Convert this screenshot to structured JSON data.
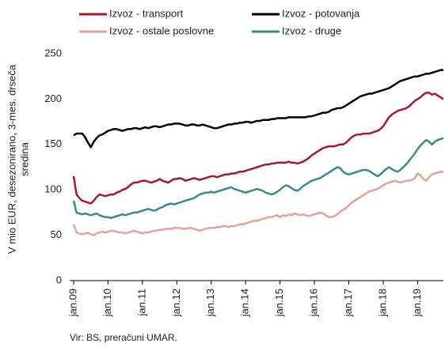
{
  "chart_data": {
    "type": "line",
    "ylabel": [
      "V mio EUR, desezonirano, 3-mes. drseča",
      "sredina"
    ],
    "source": "Vir: BS, preračuni UMAR.",
    "ylim": [
      0,
      250
    ],
    "yticks": [
      0,
      50,
      100,
      150,
      200,
      250
    ],
    "categories": [
      "jan.09",
      null,
      null,
      null,
      null,
      null,
      null,
      null,
      null,
      null,
      null,
      null,
      "jan.10",
      null,
      null,
      null,
      null,
      null,
      null,
      null,
      null,
      null,
      null,
      null,
      "jan.11",
      null,
      null,
      null,
      null,
      null,
      null,
      null,
      null,
      null,
      null,
      null,
      "jan.12",
      null,
      null,
      null,
      null,
      null,
      null,
      null,
      null,
      null,
      null,
      null,
      "jan.13",
      null,
      null,
      null,
      null,
      null,
      null,
      null,
      null,
      null,
      null,
      null,
      "jan.14",
      null,
      null,
      null,
      null,
      null,
      null,
      null,
      null,
      null,
      null,
      null,
      "jan.15",
      null,
      null,
      null,
      null,
      null,
      null,
      null,
      null,
      null,
      null,
      null,
      "jan.16",
      null,
      null,
      null,
      null,
      null,
      null,
      null,
      null,
      null,
      null,
      null,
      "jan.17",
      null,
      null,
      null,
      null,
      null,
      null,
      null,
      null,
      null,
      null,
      null,
      "jan.18",
      null,
      null,
      null,
      null,
      null,
      null,
      null,
      null,
      null,
      null,
      null,
      "jan.19",
      null,
      null,
      null,
      null,
      null,
      null,
      null,
      null,
      null
    ],
    "series": [
      {
        "name": "Izvoz - transport",
        "color": "#a6192e",
        "values": [
          115,
          95,
          91,
          88,
          87,
          86,
          85,
          88,
          92,
          95,
          94,
          93,
          94,
          95,
          95,
          97,
          98,
          100,
          101,
          103,
          106,
          108,
          108,
          109,
          110,
          110,
          109,
          108,
          109,
          110,
          112,
          110,
          109,
          108,
          110,
          112,
          112,
          113,
          112,
          110,
          111,
          112,
          113,
          112,
          111,
          112,
          113,
          114,
          115,
          115,
          114,
          115,
          116,
          117,
          117,
          118,
          118,
          119,
          120,
          120,
          121,
          122,
          123,
          124,
          125,
          126,
          127,
          128,
          128,
          129,
          129,
          130,
          130,
          130,
          130,
          131,
          130,
          130,
          129,
          130,
          131,
          133,
          135,
          138,
          140,
          142,
          144,
          146,
          147,
          148,
          148,
          148,
          149,
          150,
          150,
          152,
          155,
          158,
          160,
          161,
          161,
          162,
          162,
          162,
          163,
          164,
          165,
          167,
          170,
          175,
          180,
          183,
          185,
          187,
          188,
          189,
          190,
          192,
          195,
          198,
          200,
          202,
          205,
          207,
          207,
          205,
          206,
          204,
          202,
          200
        ]
      },
      {
        "name": "Izvoz - potovanja",
        "color": "#000000",
        "values": [
          160,
          162,
          162,
          162,
          158,
          152,
          147,
          153,
          157,
          160,
          161,
          163,
          165,
          166,
          167,
          167,
          166,
          165,
          166,
          167,
          167,
          168,
          168,
          167,
          168,
          169,
          168,
          169,
          170,
          170,
          169,
          170,
          171,
          172,
          172,
          173,
          173,
          173,
          172,
          171,
          171,
          172,
          172,
          171,
          171,
          172,
          171,
          170,
          169,
          168,
          168,
          169,
          170,
          171,
          172,
          172,
          173,
          173,
          174,
          174,
          175,
          175,
          174,
          175,
          176,
          176,
          177,
          177,
          177,
          178,
          178,
          179,
          179,
          179,
          179,
          180,
          180,
          180,
          180,
          180,
          180,
          180,
          181,
          181,
          182,
          183,
          184,
          185,
          185,
          186,
          188,
          189,
          190,
          190,
          191,
          193,
          195,
          197,
          199,
          201,
          203,
          204,
          205,
          206,
          206,
          207,
          208,
          209,
          210,
          211,
          212,
          214,
          216,
          218,
          220,
          221,
          222,
          223,
          224,
          225,
          225,
          226,
          227,
          228,
          228,
          229,
          230,
          231,
          232,
          232
        ]
      },
      {
        "name": "Izvoz - ostale poslovne",
        "color": "#e8a09a",
        "values": [
          62,
          53,
          52,
          51,
          52,
          53,
          51,
          50,
          52,
          53,
          54,
          53,
          54,
          55,
          55,
          54,
          53,
          53,
          52,
          53,
          54,
          55,
          54,
          53,
          52,
          53,
          53,
          54,
          55,
          55,
          56,
          56,
          57,
          57,
          57,
          58,
          58,
          58,
          57,
          57,
          58,
          58,
          57,
          56,
          55,
          56,
          57,
          58,
          58,
          58,
          59,
          59,
          60,
          60,
          59,
          60,
          60,
          61,
          62,
          62,
          63,
          64,
          65,
          66,
          66,
          67,
          68,
          69,
          70,
          70,
          71,
          72,
          70,
          72,
          71,
          73,
          72,
          74,
          73,
          72,
          73,
          72,
          71,
          72,
          73,
          74,
          75,
          74,
          72,
          70,
          70,
          71,
          73,
          76,
          78,
          80,
          83,
          86,
          88,
          90,
          92,
          94,
          96,
          98,
          99,
          100,
          101,
          103,
          105,
          107,
          108,
          109,
          110,
          109,
          108,
          109,
          110,
          110,
          111,
          113,
          118,
          116,
          112,
          110,
          114,
          117,
          118,
          119,
          120,
          120
        ]
      },
      {
        "name": "Izvoz - druge",
        "color": "#3a8a8a",
        "values": [
          88,
          75,
          74,
          73,
          74,
          73,
          72,
          73,
          74,
          72,
          71,
          70,
          70,
          69,
          70,
          71,
          72,
          73,
          72,
          73,
          74,
          75,
          75,
          76,
          77,
          78,
          79,
          78,
          77,
          78,
          80,
          81,
          83,
          84,
          85,
          84,
          85,
          86,
          87,
          88,
          89,
          90,
          91,
          93,
          95,
          96,
          97,
          97,
          98,
          97,
          98,
          99,
          100,
          101,
          102,
          103,
          101,
          100,
          99,
          98,
          97,
          98,
          99,
          100,
          101,
          100,
          99,
          97,
          96,
          95,
          96,
          98,
          100,
          103,
          105,
          104,
          102,
          100,
          99,
          101,
          104,
          106,
          108,
          110,
          111,
          112,
          113,
          115,
          117,
          119,
          121,
          123,
          125,
          124,
          120,
          118,
          117,
          118,
          119,
          120,
          121,
          122,
          122,
          121,
          119,
          117,
          115,
          117,
          120,
          123,
          125,
          123,
          121,
          120,
          122,
          125,
          128,
          132,
          136,
          140,
          145,
          149,
          152,
          155,
          153,
          150,
          153,
          155,
          156,
          157
        ]
      }
    ]
  }
}
